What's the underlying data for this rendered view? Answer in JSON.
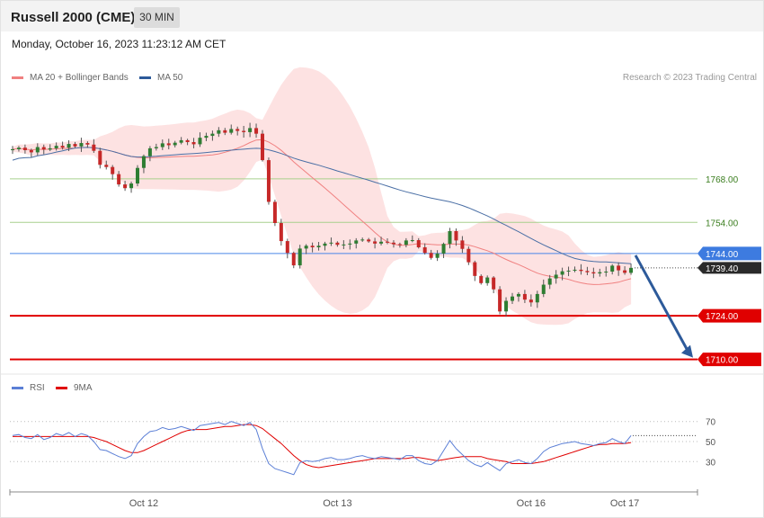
{
  "header": {
    "title": "Russell 2000 (CME)",
    "timeframe": "30 MIN",
    "timestamp": "Monday, October 16, 2023 11:23:12 AM CET"
  },
  "legend": {
    "ma20_label": "MA 20 + Bollinger Bands",
    "ma50_label": "MA 50",
    "credit": "Research © 2023 Trading Central"
  },
  "rsi_legend": {
    "rsi_label": "RSI",
    "ma9_label": "9MA"
  },
  "colors": {
    "up": "#2e7d32",
    "down": "#c62828",
    "ma20": "#f08080",
    "ma50": "#4a6fa5",
    "band": "#fde0e0",
    "resistance": "#a8d08d",
    "pivot": "#4a86e8",
    "support": "#e00000",
    "arrow": "#2d5a9a",
    "rsi": "#5b7fd6",
    "rsi_ma": "#e00000"
  },
  "price_levels": [
    {
      "value": 1768.0,
      "label": "1768.00",
      "kind": "resistance"
    },
    {
      "value": 1754.0,
      "label": "1754.00",
      "kind": "resistance"
    },
    {
      "value": 1744.0,
      "label": "1744.00",
      "kind": "pivot"
    },
    {
      "value": 1724.0,
      "label": "1724.00",
      "kind": "support"
    },
    {
      "value": 1710.0,
      "label": "1710.00",
      "kind": "support"
    }
  ],
  "last_price": {
    "value": 1739.4,
    "label": "1739.40"
  },
  "rsi_levels": [
    "70",
    "50",
    "30"
  ],
  "x_labels": [
    {
      "label": "Oct 12",
      "bar": 21
    },
    {
      "label": "Oct 13",
      "bar": 52
    },
    {
      "label": "Oct 16",
      "bar": 83
    },
    {
      "label": "Oct 17",
      "bar": 98
    }
  ],
  "chart_data": {
    "type": "candlestick",
    "instrument": "Russell 2000 (CME)",
    "interval": "30 MIN",
    "price_range": [
      1707,
      1798
    ],
    "rsi_range": [
      15,
      85
    ],
    "projection": {
      "from": 1744,
      "to": 1710
    },
    "closes": [
      1777.5,
      1778.0,
      1777.2,
      1776.5,
      1778.2,
      1777.4,
      1777.8,
      1778.6,
      1778.0,
      1779.2,
      1778.4,
      1779.5,
      1779.0,
      1777.0,
      1772.5,
      1771.8,
      1769.5,
      1766.2,
      1765.0,
      1766.5,
      1771.5,
      1775.3,
      1777.8,
      1778.2,
      1779.4,
      1778.8,
      1779.6,
      1780.4,
      1779.8,
      1779.1,
      1781.2,
      1781.8,
      1782.5,
      1783.6,
      1782.8,
      1784.0,
      1783.4,
      1783.0,
      1784.3,
      1782.5,
      1774.0,
      1760.6,
      1753.8,
      1748.0,
      1744.2,
      1740.2,
      1745.6,
      1746.5,
      1746.0,
      1746.5,
      1747.2,
      1747.5,
      1746.8,
      1746.9,
      1747.2,
      1748.2,
      1748.5,
      1747.9,
      1747.2,
      1747.8,
      1747.5,
      1747.0,
      1746.8,
      1748.2,
      1748.3,
      1746.0,
      1744.2,
      1742.6,
      1744.0,
      1747.1,
      1751.2,
      1748.2,
      1745.5,
      1741.2,
      1736.8,
      1734.5,
      1736.3,
      1732.5,
      1725.4,
      1728.8,
      1730.2,
      1731.0,
      1729.2,
      1728.3,
      1731.0,
      1734.0,
      1736.0,
      1737.2,
      1738.3,
      1738.5,
      1738.8,
      1738.4,
      1738.0,
      1737.6,
      1738.0,
      1738.2,
      1740.1,
      1738.6,
      1737.8,
      1739.4
    ],
    "rsi": [
      56,
      57,
      54,
      53,
      57,
      52,
      54,
      58,
      56,
      59,
      55,
      58,
      56,
      50,
      42,
      41,
      38,
      35,
      33,
      36,
      48,
      55,
      60,
      61,
      64,
      62,
      63,
      65,
      63,
      61,
      66,
      67,
      68,
      69,
      67,
      70,
      68,
      66,
      69,
      62,
      43,
      28,
      23,
      21,
      19,
      17,
      29,
      31,
      30,
      31,
      33,
      34,
      32,
      32,
      33,
      35,
      36,
      34,
      33,
      35,
      34,
      33,
      32,
      36,
      36,
      31,
      28,
      27,
      31,
      41,
      51,
      43,
      37,
      31,
      27,
      25,
      29,
      25,
      21,
      28,
      30,
      32,
      29,
      28,
      33,
      40,
      44,
      46,
      48,
      49,
      50,
      48,
      47,
      46,
      48,
      49,
      53,
      50,
      48,
      56
    ],
    "rsi_ma": [
      55,
      55,
      55,
      55,
      55,
      55,
      55,
      55,
      55,
      55,
      55,
      55,
      55,
      54,
      52,
      50,
      47,
      44,
      41,
      39,
      39,
      41,
      44,
      47,
      50,
      53,
      56,
      59,
      61,
      62,
      62,
      62,
      63,
      64,
      65,
      65,
      66,
      67,
      67,
      66,
      63,
      58,
      53,
      48,
      42,
      36,
      31,
      27,
      25,
      24,
      25,
      26,
      27,
      28,
      29,
      30,
      31,
      32,
      33,
      33,
      33,
      33,
      33,
      33,
      34,
      34,
      33,
      32,
      31,
      32,
      33,
      34,
      35,
      35,
      35,
      35,
      33,
      32,
      31,
      30,
      28,
      28,
      28,
      28,
      29,
      30,
      32,
      34,
      36,
      38,
      40,
      42,
      44,
      46,
      47,
      47,
      48,
      48,
      48,
      49
    ]
  }
}
